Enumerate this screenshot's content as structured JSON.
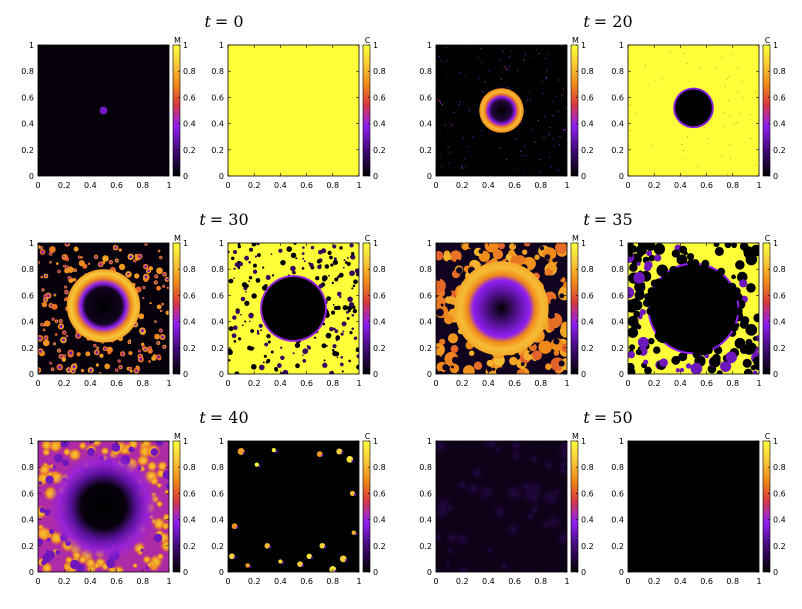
{
  "figure": {
    "colormap": [
      "#000000",
      "#3c0a6e",
      "#8f1ff0",
      "#d83c3c",
      "#f08a1a",
      "#f7c83a",
      "#ffff3a"
    ],
    "colormap_stops": [
      0,
      0.18,
      0.38,
      0.55,
      0.7,
      0.85,
      1
    ]
  },
  "chart_data": [
    {
      "type": "heatmap",
      "title_var": "t",
      "title_eq": "= 0",
      "colorbar_label": "M",
      "field": "M",
      "time": 0,
      "xlim": [
        0,
        1
      ],
      "ylim": [
        0,
        1
      ],
      "clim": [
        0,
        1
      ],
      "xticks": [
        "0",
        "0.2",
        "0.4",
        "0.6",
        "0.8",
        "1"
      ],
      "yticks": [
        "0",
        "0.2",
        "0.4",
        "0.6",
        "0.8",
        "1"
      ],
      "cticks": [
        "0",
        "0.2",
        "0.4",
        "0.6",
        "0.8",
        "1"
      ]
    },
    {
      "type": "heatmap",
      "colorbar_label": "C",
      "field": "C",
      "time": 0,
      "xlim": [
        0,
        1
      ],
      "ylim": [
        0,
        1
      ],
      "clim": [
        0,
        1
      ],
      "xticks": [
        "0",
        "0.2",
        "0.4",
        "0.6",
        "0.8",
        "1"
      ],
      "yticks": [
        "0",
        "0.2",
        "0.4",
        "0.6",
        "0.8",
        "1"
      ],
      "cticks": [
        "0",
        "0.2",
        "0.4",
        "0.6",
        "0.8",
        "1"
      ]
    },
    {
      "type": "heatmap",
      "colorbar_label": "M",
      "field": "M",
      "time": 20,
      "xlim": [
        0,
        1
      ],
      "ylim": [
        0,
        1
      ],
      "clim": [
        0,
        1
      ],
      "xticks": [
        "0",
        "0.2",
        "0.4",
        "0.6",
        "0.8",
        "1"
      ],
      "yticks": [
        "0",
        "0.2",
        "0.4",
        "0.6",
        "0.8",
        "1"
      ],
      "cticks": [
        "0",
        "0.2",
        "0.4",
        "0.6",
        "0.8",
        "1"
      ]
    },
    {
      "type": "heatmap",
      "title_var": "t",
      "title_eq": "= 20",
      "colorbar_label": "C",
      "field": "C",
      "time": 20,
      "xlim": [
        0,
        1
      ],
      "ylim": [
        0,
        1
      ],
      "clim": [
        0,
        1
      ],
      "xticks": [
        "0",
        "0.2",
        "0.4",
        "0.6",
        "0.8",
        "1"
      ],
      "yticks": [
        "0",
        "0.2",
        "0.4",
        "0.6",
        "0.8",
        "1"
      ],
      "cticks": [
        "0",
        "0.2",
        "0.4",
        "0.6",
        "0.8",
        "1"
      ]
    },
    {
      "type": "heatmap",
      "title_var": "t",
      "title_eq": "= 30",
      "colorbar_label": "M",
      "field": "M",
      "time": 30,
      "xlim": [
        0,
        1
      ],
      "ylim": [
        0,
        1
      ],
      "clim": [
        0,
        1
      ],
      "xticks": [
        "0",
        "0.2",
        "0.4",
        "0.6",
        "0.8",
        "1"
      ],
      "yticks": [
        "0",
        "0.2",
        "0.4",
        "0.6",
        "0.8",
        "1"
      ],
      "cticks": [
        "0",
        "0.2",
        "0.4",
        "0.6",
        "0.8",
        "1"
      ]
    },
    {
      "type": "heatmap",
      "colorbar_label": "C",
      "field": "C",
      "time": 30,
      "xlim": [
        0,
        1
      ],
      "ylim": [
        0,
        1
      ],
      "clim": [
        0,
        1
      ],
      "xticks": [
        "0",
        "0.2",
        "0.4",
        "0.6",
        "0.8",
        "1"
      ],
      "yticks": [
        "0",
        "0.2",
        "0.4",
        "0.6",
        "0.8",
        "1"
      ],
      "cticks": [
        "0",
        "0.2",
        "0.4",
        "0.6",
        "0.8",
        "1"
      ]
    },
    {
      "type": "heatmap",
      "colorbar_label": "M",
      "field": "M",
      "time": 35,
      "xlim": [
        0,
        1
      ],
      "ylim": [
        0,
        1
      ],
      "clim": [
        0,
        1
      ],
      "xticks": [
        "0",
        "0.2",
        "0.4",
        "0.6",
        "0.8",
        "1"
      ],
      "yticks": [
        "0",
        "0.2",
        "0.4",
        "0.6",
        "0.8",
        "1"
      ],
      "cticks": [
        "0",
        "0.2",
        "0.4",
        "0.6",
        "0.8",
        "1"
      ]
    },
    {
      "type": "heatmap",
      "title_var": "t",
      "title_eq": "= 35",
      "colorbar_label": "C",
      "field": "C",
      "time": 35,
      "xlim": [
        0,
        1
      ],
      "ylim": [
        0,
        1
      ],
      "clim": [
        0,
        1
      ],
      "xticks": [
        "0",
        "0.2",
        "0.4",
        "0.6",
        "0.8",
        "1"
      ],
      "yticks": [
        "0",
        "0.2",
        "0.4",
        "0.6",
        "0.8",
        "1"
      ],
      "cticks": [
        "0",
        "0.2",
        "0.4",
        "0.6",
        "0.8",
        "1"
      ]
    },
    {
      "type": "heatmap",
      "title_var": "t",
      "title_eq": "= 40",
      "colorbar_label": "M",
      "field": "M",
      "time": 40,
      "xlim": [
        0,
        1
      ],
      "ylim": [
        0,
        1
      ],
      "clim": [
        0,
        1
      ],
      "xticks": [
        "0",
        "0.2",
        "0.4",
        "0.6",
        "0.8",
        "1"
      ],
      "yticks": [
        "0",
        "0.2",
        "0.4",
        "0.6",
        "0.8",
        "1"
      ],
      "cticks": [
        "0",
        "0.2",
        "0.4",
        "0.6",
        "0.8",
        "1"
      ]
    },
    {
      "type": "heatmap",
      "colorbar_label": "C",
      "field": "C",
      "time": 40,
      "xlim": [
        0,
        1
      ],
      "ylim": [
        0,
        1
      ],
      "clim": [
        0,
        1
      ],
      "xticks": [
        "0",
        "0.2",
        "0.4",
        "0.6",
        "0.8",
        "1"
      ],
      "yticks": [
        "0",
        "0.2",
        "0.4",
        "0.6",
        "0.8",
        "1"
      ],
      "cticks": [
        "0",
        "0.2",
        "0.4",
        "0.6",
        "0.8",
        "1"
      ]
    },
    {
      "type": "heatmap",
      "colorbar_label": "M",
      "field": "M",
      "time": 50,
      "xlim": [
        0,
        1
      ],
      "ylim": [
        0,
        1
      ],
      "clim": [
        0,
        1
      ],
      "xticks": [
        "0",
        "0.2",
        "0.4",
        "0.6",
        "0.8",
        "1"
      ],
      "yticks": [
        "0",
        "0.2",
        "0.4",
        "0.6",
        "0.8",
        "1"
      ],
      "cticks": [
        "0",
        "0.2",
        "0.4",
        "0.6",
        "0.8",
        "1"
      ]
    },
    {
      "type": "heatmap",
      "title_var": "t",
      "title_eq": "= 50",
      "colorbar_label": "C",
      "field": "C",
      "time": 50,
      "xlim": [
        0,
        1
      ],
      "ylim": [
        0,
        1
      ],
      "clim": [
        0,
        1
      ],
      "xticks": [
        "0",
        "0.2",
        "0.4",
        "0.6",
        "0.8",
        "1"
      ],
      "yticks": [
        "0",
        "0.2",
        "0.4",
        "0.6",
        "0.8",
        "1"
      ],
      "cticks": [
        "0",
        "0.2",
        "0.4",
        "0.6",
        "0.8",
        "1"
      ]
    }
  ]
}
